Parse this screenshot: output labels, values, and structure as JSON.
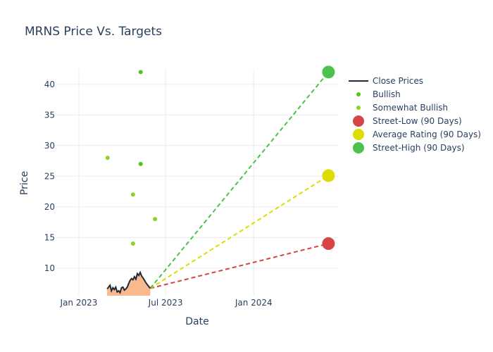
{
  "chart_data": {
    "type": "line",
    "title": "MRNS Price Vs. Targets",
    "xlabel": "Date",
    "ylabel": "Price",
    "x_range": [
      "2022-11-15",
      "2024-06-25"
    ],
    "ylim": [
      5.5,
      42.5
    ],
    "x_ticks": [
      {
        "date": "2023-01-01",
        "label": "Jan 2023"
      },
      {
        "date": "2023-07-01",
        "label": "Jul 2023"
      },
      {
        "date": "2024-01-01",
        "label": "Jan 2024"
      }
    ],
    "y_ticks": [
      10,
      15,
      20,
      25,
      30,
      35,
      40
    ],
    "grid": true,
    "legend_position": "right",
    "series": [
      {
        "name": "Close Prices",
        "type": "line-area",
        "color": "#1f2a36",
        "fill_color": "#f9b88e",
        "points": [
          [
            "2023-03-01",
            6.6
          ],
          [
            "2023-03-04",
            6.9
          ],
          [
            "2023-03-07",
            7.2
          ],
          [
            "2023-03-10",
            6.3
          ],
          [
            "2023-03-13",
            6.8
          ],
          [
            "2023-03-16",
            6.5
          ],
          [
            "2023-03-19",
            6.9
          ],
          [
            "2023-03-22",
            6.1
          ],
          [
            "2023-03-25",
            6.3
          ],
          [
            "2023-03-28",
            6.0
          ],
          [
            "2023-03-31",
            6.8
          ],
          [
            "2023-04-03",
            6.9
          ],
          [
            "2023-04-06",
            6.4
          ],
          [
            "2023-04-09",
            6.6
          ],
          [
            "2023-04-12",
            6.9
          ],
          [
            "2023-04-15",
            7.5
          ],
          [
            "2023-04-18",
            8.0
          ],
          [
            "2023-04-21",
            8.3
          ],
          [
            "2023-04-24",
            8.1
          ],
          [
            "2023-04-27",
            8.6
          ],
          [
            "2023-04-30",
            8.2
          ],
          [
            "2023-05-03",
            9.1
          ],
          [
            "2023-05-06",
            8.8
          ],
          [
            "2023-05-09",
            9.3
          ],
          [
            "2023-05-12",
            8.7
          ],
          [
            "2023-05-15",
            8.4
          ],
          [
            "2023-05-18",
            8.0
          ],
          [
            "2023-05-21",
            7.6
          ],
          [
            "2023-05-24",
            7.3
          ],
          [
            "2023-05-27",
            7.0
          ],
          [
            "2023-05-30",
            6.7
          ]
        ]
      },
      {
        "name": "Bullish",
        "type": "markers",
        "color": "#52c41a",
        "points": [
          [
            "2023-05-10",
            42
          ],
          [
            "2023-05-10",
            27
          ]
        ]
      },
      {
        "name": "Somewhat Bullish",
        "type": "markers",
        "color": "#8fd12a",
        "points": [
          [
            "2023-03-02",
            28
          ],
          [
            "2023-04-24",
            22
          ],
          [
            "2023-04-24",
            14
          ],
          [
            "2023-06-09",
            18
          ]
        ]
      },
      {
        "name": "Street-Low (90 Days)",
        "type": "projection",
        "color": "#d64545",
        "start": [
          "2023-05-30",
          6.7
        ],
        "end": [
          "2024-06-05",
          14
        ]
      },
      {
        "name": "Average Rating (90 Days)",
        "type": "projection",
        "color": "#dddd00",
        "start": [
          "2023-05-30",
          6.7
        ],
        "end": [
          "2024-06-05",
          25.1
        ]
      },
      {
        "name": "Street-High (90 Days)",
        "type": "projection",
        "color": "#4cc14c",
        "start": [
          "2023-05-30",
          6.7
        ],
        "end": [
          "2024-06-05",
          42
        ]
      }
    ]
  }
}
